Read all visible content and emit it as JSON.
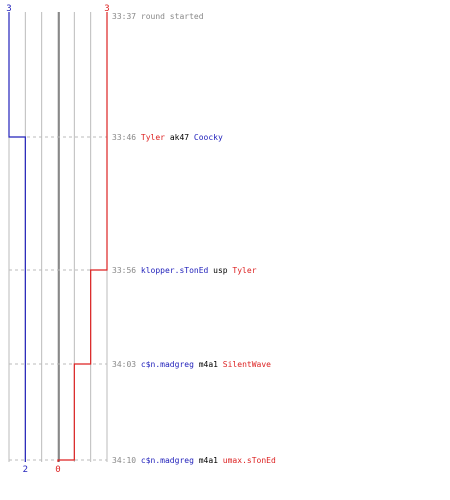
{
  "colors": {
    "team_a": "#2222bb",
    "team_b": "#dd2222",
    "weapon": "#000000",
    "time": "#888888",
    "grid": "#bbbbbb",
    "center": "#777777",
    "dash": "#bbbbbb"
  },
  "chart_data": {
    "type": "line",
    "title": "",
    "xlabel": "",
    "ylabel": "",
    "ylim": [
      0,
      3
    ],
    "x": [
      "33:37",
      "33:46",
      "33:56",
      "34:03",
      "34:10"
    ],
    "series": [
      {
        "name": "",
        "team": "a",
        "start_label": "3",
        "end_label": "2",
        "values": [
          3,
          2,
          2,
          2,
          2
        ]
      },
      {
        "name": "",
        "team": "b",
        "start_label": "3",
        "end_label": "0",
        "values": [
          3,
          3,
          2,
          1,
          0
        ]
      }
    ]
  },
  "events": [
    {
      "time": "33:37",
      "note": "round started"
    },
    {
      "time": "33:46",
      "killer": "Tyler",
      "killer_team": "b",
      "weapon": "ak47",
      "victim": "Coocky",
      "victim_team": "a"
    },
    {
      "time": "33:56",
      "killer": "klopper.sTonEd",
      "killer_team": "a",
      "weapon": "usp",
      "victim": "Tyler",
      "victim_team": "b"
    },
    {
      "time": "34:03",
      "killer": "c$n.madgreg",
      "killer_team": "a",
      "weapon": "m4a1",
      "victim": "SilentWave",
      "victim_team": "b"
    },
    {
      "time": "34:10",
      "killer": "c$n.madgreg",
      "killer_team": "a",
      "weapon": "m4a1",
      "victim": "umax.sTonEd",
      "victim_team": "b"
    }
  ]
}
